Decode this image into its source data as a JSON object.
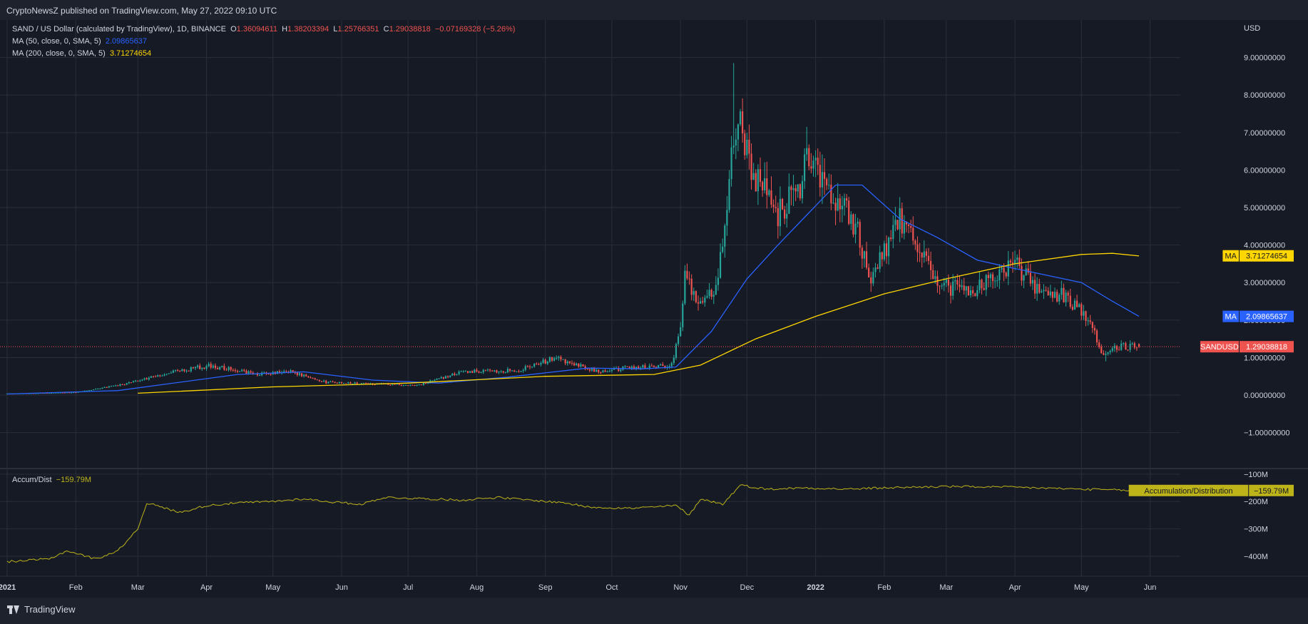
{
  "header": {
    "published": "CryptoNewsZ published on TradingView.com, May 27, 2022 09:10 UTC"
  },
  "legend": {
    "symbol": "SAND / US Dollar (calculated by TradingView), 1D, BINANCE",
    "o_label": "O",
    "o_value": "1.36094611",
    "h_label": "H",
    "h_value": "1.38203394",
    "l_label": "L",
    "l_value": "1.25766351",
    "c_label": "C",
    "c_value": "1.29038818",
    "change": "−0.07169328 (−5.26%)",
    "ma50_label": "MA (50, close, 0, SMA, 5)",
    "ma50_value": "2.09865637",
    "ma200_label": "MA (200, close, 0, SMA, 5)",
    "ma200_value": "3.71274654",
    "accum_label": "Accum/Dist",
    "accum_value": "−159.79M"
  },
  "colors": {
    "background": "#1e222d",
    "pane": "#161a25",
    "grid": "#2a2e39",
    "up": "#26a69a",
    "down": "#ef5350",
    "ma50": "#2962ff",
    "ma200": "#ffd600",
    "accum": "#bdb41a",
    "text": "#d1d4dc"
  },
  "price_axis": {
    "unit": "USD",
    "ticks": [
      "9.00000000",
      "8.00000000",
      "7.00000000",
      "6.00000000",
      "5.00000000",
      "4.00000000",
      "3.00000000",
      "2.00000000",
      "1.00000000",
      "0.00000000",
      "−1.00000000"
    ]
  },
  "badges": {
    "ma200": {
      "label": "MA",
      "value": "3.71274654"
    },
    "ma50": {
      "label": "MA",
      "value": "2.09865637"
    },
    "price": {
      "label": "SANDUSD",
      "value": "1.29038818"
    },
    "accum": {
      "label": "Accumulation/Distribution",
      "value": "−159.79M"
    }
  },
  "accum_axis": {
    "ticks": [
      "−100M",
      "−200M",
      "−300M",
      "−400M"
    ]
  },
  "time_axis": {
    "labels": [
      "2021",
      "Feb",
      "Mar",
      "Apr",
      "May",
      "Jun",
      "Jul",
      "Aug",
      "Sep",
      "Oct",
      "Nov",
      "Dec",
      "2022",
      "Feb",
      "Mar",
      "Apr",
      "May",
      "Jun"
    ]
  },
  "footer": {
    "brand": "TradingView"
  },
  "chart_data": {
    "type": "candlestick",
    "title": "SAND / US Dollar (calculated by TradingView), 1D, BINANCE",
    "ylabel": "USD",
    "ylim": [
      -1.9,
      10.0
    ],
    "x_range": [
      "2021-01-01",
      "2022-06-05"
    ],
    "candle_anchors": [
      {
        "date": "2021-01-01",
        "close": 0.04
      },
      {
        "date": "2021-02-01",
        "close": 0.07
      },
      {
        "date": "2021-02-20",
        "close": 0.26
      },
      {
        "date": "2021-03-15",
        "close": 0.6
      },
      {
        "date": "2021-04-02",
        "close": 0.78
      },
      {
        "date": "2021-04-25",
        "close": 0.56
      },
      {
        "date": "2021-05-10",
        "close": 0.62
      },
      {
        "date": "2021-05-25",
        "close": 0.34
      },
      {
        "date": "2021-06-20",
        "close": 0.3
      },
      {
        "date": "2021-07-05",
        "close": 0.25
      },
      {
        "date": "2021-07-25",
        "close": 0.62
      },
      {
        "date": "2021-08-20",
        "close": 0.66
      },
      {
        "date": "2021-09-06",
        "close": 1.0
      },
      {
        "date": "2021-09-25",
        "close": 0.62
      },
      {
        "date": "2021-10-10",
        "close": 0.74
      },
      {
        "date": "2021-10-28",
        "close": 0.8
      },
      {
        "date": "2021-11-01",
        "close": 1.9
      },
      {
        "date": "2021-11-03",
        "close": 3.1
      },
      {
        "date": "2021-11-10",
        "close": 2.5
      },
      {
        "date": "2021-11-17",
        "close": 2.8
      },
      {
        "date": "2021-11-20",
        "close": 3.9
      },
      {
        "date": "2021-11-25",
        "close": 6.8
      },
      {
        "date": "2021-11-28",
        "close": 7.3
      },
      {
        "date": "2021-12-05",
        "close": 5.8
      },
      {
        "date": "2021-12-15",
        "close": 4.8
      },
      {
        "date": "2021-12-25",
        "close": 5.6
      },
      {
        "date": "2021-12-28",
        "close": 6.7
      },
      {
        "date": "2022-01-03",
        "close": 5.9
      },
      {
        "date": "2022-01-12",
        "close": 5.1
      },
      {
        "date": "2022-01-20",
        "close": 4.4
      },
      {
        "date": "2022-01-25",
        "close": 3.0
      },
      {
        "date": "2022-02-02",
        "close": 3.9
      },
      {
        "date": "2022-02-08",
        "close": 4.7
      },
      {
        "date": "2022-02-15",
        "close": 4.1
      },
      {
        "date": "2022-02-25",
        "close": 2.9
      },
      {
        "date": "2022-03-15",
        "close": 2.8
      },
      {
        "date": "2022-03-25",
        "close": 3.3
      },
      {
        "date": "2022-04-02",
        "close": 3.45
      },
      {
        "date": "2022-04-10",
        "close": 2.9
      },
      {
        "date": "2022-04-25",
        "close": 2.6
      },
      {
        "date": "2022-05-05",
        "close": 1.9
      },
      {
        "date": "2022-05-11",
        "close": 1.05
      },
      {
        "date": "2022-05-17",
        "close": 1.3
      },
      {
        "date": "2022-05-27",
        "close": 1.29
      }
    ],
    "spikes": [
      {
        "date": "2021-11-25",
        "high": 8.85
      },
      {
        "date": "2021-12-28",
        "high": 7.15
      },
      {
        "date": "2022-04-01",
        "high": 3.85
      },
      {
        "date": "2022-05-12",
        "low": 0.9
      }
    ],
    "last_candle": {
      "date": "2022-05-27",
      "open": 1.36094611,
      "high": 1.38203394,
      "low": 1.25766351,
      "close": 1.29038818
    },
    "series": [
      {
        "name": "MA (50, close, 0, SMA, 5)",
        "points": [
          [
            "2021-01-01",
            0.03
          ],
          [
            "2021-02-20",
            0.12
          ],
          [
            "2021-04-15",
            0.55
          ],
          [
            "2021-05-15",
            0.62
          ],
          [
            "2021-06-15",
            0.4
          ],
          [
            "2021-07-15",
            0.32
          ],
          [
            "2021-08-15",
            0.48
          ],
          [
            "2021-09-20",
            0.72
          ],
          [
            "2021-10-15",
            0.7
          ],
          [
            "2021-10-30",
            0.75
          ],
          [
            "2021-11-15",
            1.7
          ],
          [
            "2021-12-01",
            3.1
          ],
          [
            "2021-12-15",
            4.0
          ],
          [
            "2021-12-28",
            4.8
          ],
          [
            "2022-01-10",
            5.6
          ],
          [
            "2022-01-22",
            5.6
          ],
          [
            "2022-02-08",
            4.7
          ],
          [
            "2022-02-25",
            4.2
          ],
          [
            "2022-03-15",
            3.6
          ],
          [
            "2022-03-30",
            3.4
          ],
          [
            "2022-04-15",
            3.2
          ],
          [
            "2022-05-01",
            3.0
          ],
          [
            "2022-05-15",
            2.5
          ],
          [
            "2022-05-27",
            2.1
          ]
        ]
      },
      {
        "name": "MA (200, close, 0, SMA, 5)",
        "points": [
          [
            "2021-03-01",
            0.05
          ],
          [
            "2021-05-01",
            0.22
          ],
          [
            "2021-07-01",
            0.32
          ],
          [
            "2021-09-01",
            0.5
          ],
          [
            "2021-10-20",
            0.55
          ],
          [
            "2021-11-10",
            0.8
          ],
          [
            "2021-12-05",
            1.5
          ],
          [
            "2022-01-01",
            2.1
          ],
          [
            "2022-02-01",
            2.7
          ],
          [
            "2022-03-01",
            3.1
          ],
          [
            "2022-04-01",
            3.5
          ],
          [
            "2022-05-01",
            3.75
          ],
          [
            "2022-05-15",
            3.78
          ],
          [
            "2022-05-27",
            3.71
          ]
        ]
      }
    ],
    "accum_dist": {
      "name": "Accumulation/Distribution",
      "unit": "M",
      "ylim": [
        -460,
        -90
      ],
      "points": [
        [
          "2021-01-01",
          -420
        ],
        [
          "2021-01-20",
          -410
        ],
        [
          "2021-01-28",
          -380
        ],
        [
          "2021-02-10",
          -410
        ],
        [
          "2021-02-20",
          -380
        ],
        [
          "2021-03-01",
          -300
        ],
        [
          "2021-03-05",
          -205
        ],
        [
          "2021-03-20",
          -240
        ],
        [
          "2021-04-01",
          -215
        ],
        [
          "2021-04-15",
          -205
        ],
        [
          "2021-05-01",
          -200
        ],
        [
          "2021-05-15",
          -190
        ],
        [
          "2021-05-25",
          -200
        ],
        [
          "2021-06-10",
          -210
        ],
        [
          "2021-06-20",
          -185
        ],
        [
          "2021-07-10",
          -190
        ],
        [
          "2021-07-25",
          -195
        ],
        [
          "2021-08-10",
          -185
        ],
        [
          "2021-08-25",
          -195
        ],
        [
          "2021-09-10",
          -205
        ],
        [
          "2021-09-20",
          -220
        ],
        [
          "2021-10-10",
          -225
        ],
        [
          "2021-10-30",
          -215
        ],
        [
          "2021-11-05",
          -250
        ],
        [
          "2021-11-10",
          -190
        ],
        [
          "2021-11-20",
          -210
        ],
        [
          "2021-11-28",
          -140
        ],
        [
          "2021-12-10",
          -155
        ],
        [
          "2021-12-28",
          -150
        ],
        [
          "2022-01-15",
          -155
        ],
        [
          "2022-02-01",
          -150
        ],
        [
          "2022-03-01",
          -145
        ],
        [
          "2022-04-01",
          -148
        ],
        [
          "2022-05-01",
          -155
        ],
        [
          "2022-05-27",
          -160
        ]
      ]
    }
  }
}
